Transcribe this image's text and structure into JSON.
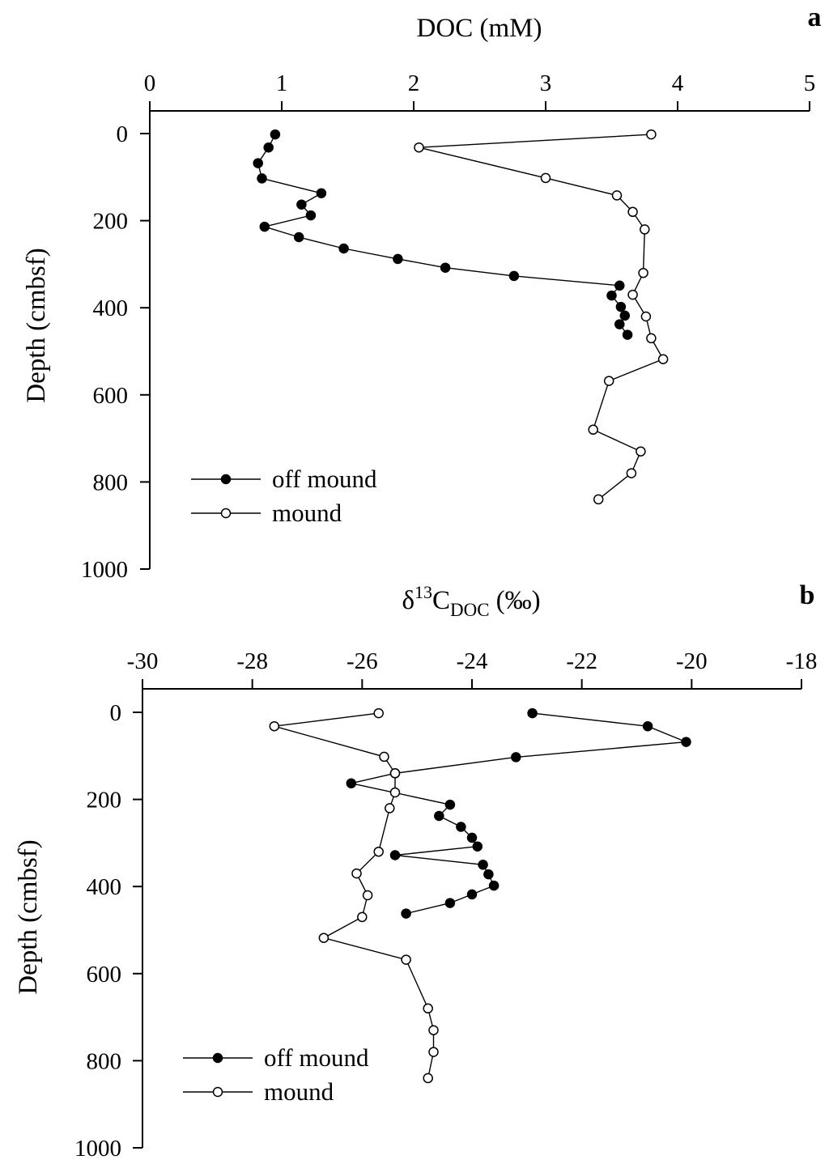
{
  "chart_data": [
    {
      "panel": "a",
      "type": "line",
      "xaxis_position": "top",
      "title": "DOC (mM)",
      "xlabel": "DOC (mM)",
      "ylabel": "Depth (cmbsf)",
      "xlim": [
        0,
        5
      ],
      "ylim": [
        0,
        1000
      ],
      "y_inverted": true,
      "xticks": [
        0,
        1,
        2,
        3,
        4,
        5
      ],
      "yticks": [
        0,
        200,
        400,
        600,
        800,
        1000
      ],
      "legend_position": "bottom-left",
      "series": [
        {
          "name": "off mound",
          "marker": "filled-circle",
          "points": [
            [
              0.95,
              2
            ],
            [
              0.9,
              32
            ],
            [
              0.82,
              68
            ],
            [
              0.85,
              103
            ],
            [
              1.3,
              137
            ],
            [
              1.15,
              163
            ],
            [
              1.22,
              188
            ],
            [
              0.87,
              214
            ],
            [
              1.13,
              238
            ],
            [
              1.47,
              264
            ],
            [
              1.88,
              288
            ],
            [
              2.24,
              308
            ],
            [
              2.76,
              327
            ],
            [
              3.56,
              349
            ],
            [
              3.5,
              372
            ],
            [
              3.57,
              398
            ],
            [
              3.6,
              418
            ],
            [
              3.56,
              438
            ],
            [
              3.62,
              462
            ]
          ]
        },
        {
          "name": "mound",
          "marker": "open-circle",
          "points": [
            [
              3.8,
              2
            ],
            [
              2.04,
              32
            ],
            [
              3.0,
              102
            ],
            [
              3.54,
              142
            ],
            [
              3.66,
              180
            ],
            [
              3.75,
              220
            ],
            [
              3.74,
              320
            ],
            [
              3.66,
              370
            ],
            [
              3.76,
              420
            ],
            [
              3.8,
              470
            ],
            [
              3.89,
              518
            ],
            [
              3.48,
              568
            ],
            [
              3.36,
              680
            ],
            [
              3.72,
              730
            ],
            [
              3.65,
              780
            ],
            [
              3.4,
              840
            ]
          ]
        }
      ]
    },
    {
      "panel": "b",
      "type": "line",
      "xaxis_position": "top",
      "title": "δ13CDOC (‰)",
      "xlabel": "δ13CDOC (‰)",
      "xlabel_parts": {
        "base": "δ",
        "sup": "13",
        "main": "C",
        "sub": "DOC",
        "unit": "(‰)"
      },
      "ylabel": "Depth (cmbsf)",
      "xlim": [
        -30,
        -18
      ],
      "ylim": [
        0,
        1000
      ],
      "y_inverted": true,
      "xticks": [
        -30,
        -28,
        -26,
        -24,
        -22,
        -20,
        -18
      ],
      "yticks": [
        0,
        200,
        400,
        600,
        800,
        1000
      ],
      "legend_position": "bottom-left",
      "series": [
        {
          "name": "off mound",
          "marker": "filled-circle",
          "points": [
            [
              -22.9,
              2
            ],
            [
              -20.8,
              32
            ],
            [
              -20.1,
              68
            ],
            [
              -23.2,
              103
            ],
            [
              -25.4,
              140
            ],
            [
              -26.2,
              163
            ],
            [
              -24.4,
              212
            ],
            [
              -24.6,
              238
            ],
            [
              -24.2,
              263
            ],
            [
              -24.0,
              288
            ],
            [
              -23.9,
              308
            ],
            [
              -25.4,
              328
            ],
            [
              -23.8,
              350
            ],
            [
              -23.7,
              372
            ],
            [
              -23.6,
              398
            ],
            [
              -24.0,
              418
            ],
            [
              -24.4,
              438
            ],
            [
              -25.2,
              462
            ]
          ]
        },
        {
          "name": "mound",
          "marker": "open-circle",
          "points": [
            [
              -25.7,
              2
            ],
            [
              -27.6,
              32
            ],
            [
              -25.6,
              102
            ],
            [
              -25.4,
              140
            ],
            [
              -25.4,
              184
            ],
            [
              -25.5,
              220
            ],
            [
              -25.7,
              320
            ],
            [
              -26.1,
              370
            ],
            [
              -25.9,
              420
            ],
            [
              -26.0,
              470
            ],
            [
              -26.7,
              518
            ],
            [
              -25.2,
              568
            ],
            [
              -24.8,
              680
            ],
            [
              -24.7,
              730
            ],
            [
              -24.7,
              780
            ],
            [
              -24.8,
              840
            ]
          ]
        }
      ]
    }
  ]
}
